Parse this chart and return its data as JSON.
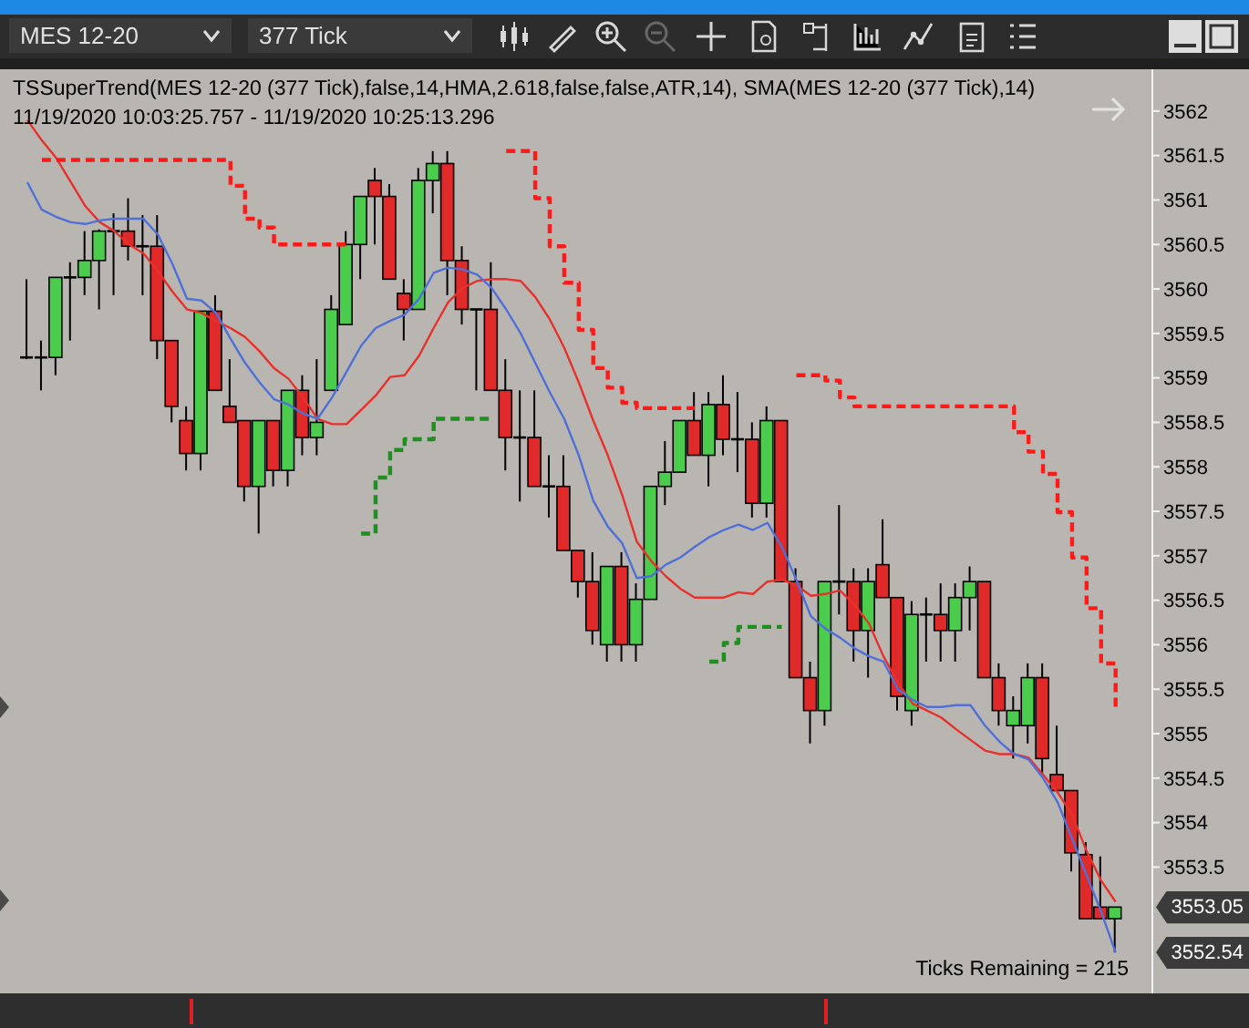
{
  "chart_data": {
    "type": "candlestick",
    "title": "TSSuperTrend(MES 12-20 (377 Tick),false,14,HMA,2.618,false,false,ATR,14), SMA(MES 12-20 (377 Tick),14)",
    "subtitle": "11/19/2020 10:03:25.757 - 11/19/2020 10:25:13.296",
    "categories": [
      null,
      null,
      null,
      null,
      null,
      null,
      null,
      null,
      null,
      null,
      null,
      null,
      null,
      null,
      null,
      null,
      null,
      null,
      null,
      null,
      null,
      null,
      null,
      null,
      null,
      null,
      null,
      null,
      null,
      null,
      null,
      null,
      null,
      null,
      null,
      null,
      null,
      null,
      null,
      null,
      null,
      null,
      null,
      null,
      null,
      null,
      null,
      null,
      null,
      null,
      null,
      null,
      null,
      null,
      null,
      null,
      null,
      null,
      null,
      null,
      null,
      null,
      null,
      null,
      null,
      null,
      null,
      null,
      null,
      null,
      null,
      null,
      null,
      null,
      null,
      null
    ],
    "ohlc": [
      [
        3559.23,
        3560.11,
        3559.21,
        3559.23
      ],
      [
        3559.23,
        3559.42,
        3558.86,
        3559.23
      ],
      [
        3559.23,
        3560.13,
        3559.03,
        3560.13
      ],
      [
        3560.13,
        3560.3,
        3559.42,
        3560.13
      ],
      [
        3560.13,
        3560.65,
        3559.93,
        3560.32
      ],
      [
        3560.32,
        3560.67,
        3559.77,
        3560.65
      ],
      [
        3560.65,
        3560.85,
        3559.93,
        3560.65
      ],
      [
        3560.65,
        3561.02,
        3560.32,
        3560.48
      ],
      [
        3560.48,
        3560.83,
        3559.93,
        3560.48
      ],
      [
        3560.48,
        3560.83,
        3559.21,
        3559.42
      ],
      [
        3559.42,
        3559.42,
        3558.5,
        3558.68
      ],
      [
        3558.52,
        3558.68,
        3557.96,
        3558.15
      ],
      [
        3558.15,
        3559.75,
        3557.96,
        3559.75
      ],
      [
        3559.75,
        3559.93,
        3558.86,
        3558.86
      ],
      [
        3558.68,
        3559.21,
        3558.5,
        3558.5
      ],
      [
        3558.52,
        3558.52,
        3557.61,
        3557.78
      ],
      [
        3557.78,
        3558.52,
        3557.25,
        3558.52
      ],
      [
        3558.52,
        3558.52,
        3557.78,
        3557.96
      ],
      [
        3557.96,
        3558.86,
        3557.78,
        3558.86
      ],
      [
        3558.86,
        3559.03,
        3558.13,
        3558.33
      ],
      [
        3558.33,
        3559.21,
        3558.13,
        3558.5
      ],
      [
        3558.86,
        3559.93,
        3558.86,
        3559.77
      ],
      [
        3559.6,
        3560.65,
        3559.6,
        3560.5
      ],
      [
        3560.5,
        3561.04,
        3560.11,
        3561.04
      ],
      [
        3561.22,
        3561.36,
        3560.5,
        3561.04
      ],
      [
        3561.04,
        3561.18,
        3560.11,
        3560.11
      ],
      [
        3559.95,
        3560.11,
        3559.42,
        3559.77
      ],
      [
        3559.77,
        3561.36,
        3559.77,
        3561.22
      ],
      [
        3561.22,
        3561.55,
        3560.85,
        3561.41
      ],
      [
        3561.41,
        3561.55,
        3559.93,
        3560.32
      ],
      [
        3560.32,
        3560.48,
        3559.6,
        3559.77
      ],
      [
        3559.77,
        3559.77,
        3558.86,
        3559.77
      ],
      [
        3559.77,
        3560.3,
        3558.86,
        3558.86
      ],
      [
        3558.86,
        3559.21,
        3557.96,
        3558.33
      ],
      [
        3558.33,
        3558.86,
        3557.61,
        3558.33
      ],
      [
        3558.33,
        3558.86,
        3557.78,
        3557.78
      ],
      [
        3557.78,
        3558.13,
        3557.43,
        3557.78
      ],
      [
        3557.78,
        3558.13,
        3557.06,
        3557.06
      ],
      [
        3557.06,
        3557.06,
        3556.53,
        3556.71
      ],
      [
        3556.71,
        3557.04,
        3556.0,
        3556.16
      ],
      [
        3556.0,
        3556.88,
        3555.81,
        3556.88
      ],
      [
        3556.88,
        3557.04,
        3555.81,
        3556.0
      ],
      [
        3556.0,
        3556.69,
        3555.81,
        3556.51
      ],
      [
        3556.51,
        3557.78,
        3556.51,
        3557.78
      ],
      [
        3557.78,
        3558.29,
        3557.57,
        3557.94
      ],
      [
        3557.94,
        3558.52,
        3557.94,
        3558.52
      ],
      [
        3558.52,
        3558.84,
        3558.13,
        3558.13
      ],
      [
        3558.13,
        3558.84,
        3557.78,
        3558.7
      ],
      [
        3558.7,
        3559.03,
        3558.13,
        3558.31
      ],
      [
        3558.31,
        3558.84,
        3557.94,
        3558.31
      ],
      [
        3558.31,
        3558.5,
        3557.43,
        3557.59
      ],
      [
        3557.59,
        3558.68,
        3557.43,
        3558.52
      ],
      [
        3558.52,
        3558.52,
        3556.71,
        3556.71
      ],
      [
        3556.71,
        3556.86,
        3555.63,
        3555.63
      ],
      [
        3555.63,
        3555.81,
        3554.89,
        3555.26
      ],
      [
        3555.26,
        3556.71,
        3555.09,
        3556.71
      ],
      [
        3556.71,
        3557.57,
        3556.34,
        3556.71
      ],
      [
        3556.71,
        3556.86,
        3555.81,
        3556.16
      ],
      [
        3556.16,
        3556.86,
        3555.63,
        3556.71
      ],
      [
        3556.9,
        3557.41,
        3556.53,
        3556.53
      ],
      [
        3556.53,
        3556.53,
        3555.26,
        3555.42
      ],
      [
        3555.26,
        3556.49,
        3555.09,
        3556.34
      ],
      [
        3556.34,
        3556.53,
        3555.81,
        3556.34
      ],
      [
        3556.34,
        3556.69,
        3555.81,
        3556.16
      ],
      [
        3556.16,
        3556.69,
        3555.81,
        3556.53
      ],
      [
        3556.53,
        3556.88,
        3556.16,
        3556.71
      ],
      [
        3556.71,
        3556.71,
        3555.63,
        3555.63
      ],
      [
        3555.63,
        3555.79,
        3555.09,
        3555.26
      ],
      [
        3555.09,
        3555.42,
        3554.72,
        3555.26
      ],
      [
        3555.09,
        3555.79,
        3554.89,
        3555.63
      ],
      [
        3555.63,
        3555.79,
        3554.54,
        3554.72
      ],
      [
        3554.54,
        3555.09,
        3554.36,
        3554.36
      ],
      [
        3554.36,
        3554.36,
        3553.45,
        3553.66
      ],
      [
        3553.64,
        3553.78,
        3552.92,
        3552.92
      ],
      [
        3553.05,
        3553.62,
        3552.92,
        3552.92
      ],
      [
        3552.92,
        3553.05,
        3552.54,
        3553.05
      ]
    ],
    "colors": [
      "#000000",
      "#000000",
      "#4ccc4c",
      "#000000",
      "#4ccc4c",
      "#4ccc4c",
      "#000000",
      "#e02a2a",
      "#000000",
      "#e02a2a",
      "#e02a2a",
      "#e02a2a",
      "#4ccc4c",
      "#e02a2a",
      "#e02a2a",
      "#e02a2a",
      "#4ccc4c",
      "#e02a2a",
      "#4ccc4c",
      "#e02a2a",
      "#4ccc4c",
      "#4ccc4c",
      "#4ccc4c",
      "#4ccc4c",
      "#e02a2a",
      "#e02a2a",
      "#e02a2a",
      "#4ccc4c",
      "#4ccc4c",
      "#e02a2a",
      "#e02a2a",
      "#000000",
      "#e02a2a",
      "#e02a2a",
      "#000000",
      "#e02a2a",
      "#000000",
      "#e02a2a",
      "#e02a2a",
      "#e02a2a",
      "#4ccc4c",
      "#e02a2a",
      "#4ccc4c",
      "#4ccc4c",
      "#4ccc4c",
      "#4ccc4c",
      "#e02a2a",
      "#4ccc4c",
      "#e02a2a",
      "#000000",
      "#e02a2a",
      "#4ccc4c",
      "#e02a2a",
      "#e02a2a",
      "#e02a2a",
      "#4ccc4c",
      "#000000",
      "#e02a2a",
      "#4ccc4c",
      "#e02a2a",
      "#e02a2a",
      "#4ccc4c",
      "#000000",
      "#e02a2a",
      "#4ccc4c",
      "#4ccc4c",
      "#e02a2a",
      "#e02a2a",
      "#4ccc4c",
      "#4ccc4c",
      "#e02a2a",
      "#e02a2a",
      "#e02a2a",
      "#e02a2a",
      "#e02a2a",
      "#4ccc4c"
    ],
    "series": [
      {
        "type": "line",
        "color": "#e8302c",
        "values": [
          3561.9,
          3561.67,
          3561.47,
          3561.2,
          3560.93,
          3560.75,
          3560.65,
          3560.5,
          3560.4,
          3560.2,
          3559.97,
          3559.77,
          3559.73,
          3559.64,
          3559.56,
          3559.46,
          3559.3,
          3559.11,
          3558.99,
          3558.78,
          3558.54,
          3558.48,
          3558.48,
          3558.64,
          3558.8,
          3559.01,
          3559.03,
          3559.25,
          3559.56,
          3559.85,
          3560.01,
          3560.09,
          3560.11,
          3560.11,
          3560.09,
          3559.91,
          3559.66,
          3559.34,
          3558.95,
          3558.52,
          3558.13,
          3557.68,
          3557.16,
          3556.94,
          3556.77,
          3556.63,
          3556.53,
          3556.53,
          3556.53,
          3556.59,
          3556.57,
          3556.71,
          3556.73,
          3556.67,
          3556.55,
          3556.57,
          3556.61,
          3556.45,
          3556.24,
          3555.87,
          3555.57,
          3555.34,
          3555.26,
          3555.18,
          3555.05,
          3554.93,
          3554.81,
          3554.77,
          3554.77,
          3554.73,
          3554.54,
          3554.34,
          3554.09,
          3553.68,
          3553.35,
          3553.11
        ]
      },
      {
        "type": "line",
        "color": "#5070d8",
        "values": [
          3561.2,
          3560.89,
          3560.81,
          3560.75,
          3560.73,
          3560.77,
          3560.79,
          3560.79,
          3560.79,
          3560.61,
          3560.28,
          3559.89,
          3559.87,
          3559.73,
          3559.44,
          3559.17,
          3558.95,
          3558.76,
          3558.7,
          3558.6,
          3558.54,
          3558.78,
          3559.07,
          3559.36,
          3559.56,
          3559.64,
          3559.71,
          3559.89,
          3560.18,
          3560.24,
          3560.22,
          3560.16,
          3560.01,
          3559.77,
          3559.5,
          3559.17,
          3558.84,
          3558.54,
          3558.13,
          3557.62,
          3557.33,
          3557.14,
          3556.75,
          3556.77,
          3556.9,
          3556.98,
          3557.1,
          3557.21,
          3557.29,
          3557.35,
          3557.29,
          3557.37,
          3557.1,
          3556.73,
          3556.32,
          3556.18,
          3556.08,
          3555.96,
          3555.87,
          3555.81,
          3555.5,
          3555.38,
          3555.3,
          3555.3,
          3555.32,
          3555.32,
          3555.09,
          3554.91,
          3554.77,
          3554.71,
          3554.5,
          3554.23,
          3553.82,
          3553.41,
          3553.0,
          3552.54
        ]
      },
      {
        "type": "step",
        "line_style": "dashed",
        "color": "#ff1a1a",
        "values": [
          null,
          3561.45,
          3561.45,
          3561.45,
          3561.45,
          3561.45,
          3561.45,
          3561.45,
          3561.45,
          3561.45,
          3561.45,
          3561.45,
          3561.45,
          3561.45,
          3561.16,
          3560.79,
          3560.69,
          3560.5,
          3560.5,
          3560.5,
          3560.5,
          3560.5,
          3560.5,
          null,
          null,
          null,
          null,
          null,
          null,
          null,
          null,
          null,
          null,
          3561.55,
          3561.55,
          3561.02,
          3560.48,
          3560.07,
          3559.54,
          3559.11,
          3558.89,
          3558.72,
          3558.66,
          3558.66,
          3558.66,
          3558.66,
          3558.66,
          null,
          null,
          null,
          null,
          null,
          null,
          3559.03,
          3559.03,
          3558.97,
          3558.78,
          3558.68,
          3558.68,
          3558.68,
          3558.68,
          3558.68,
          3558.68,
          3558.68,
          3558.68,
          3558.68,
          3558.68,
          3558.68,
          3558.39,
          3558.17,
          3557.92,
          3557.49,
          3556.98,
          3556.41,
          3555.79,
          3555.3
        ]
      },
      {
        "type": "step",
        "line_style": "dashed",
        "color": "#1f8f1f",
        "values": [
          null,
          null,
          null,
          null,
          null,
          null,
          null,
          null,
          null,
          null,
          null,
          null,
          null,
          null,
          null,
          null,
          null,
          null,
          null,
          null,
          null,
          null,
          null,
          3557.25,
          3557.88,
          3558.19,
          3558.31,
          3558.31,
          3558.54,
          3558.54,
          3558.54,
          3558.54,
          3558.54,
          null,
          null,
          null,
          null,
          null,
          null,
          null,
          null,
          null,
          null,
          null,
          null,
          null,
          null,
          3555.81,
          3556.02,
          3556.2,
          3556.2,
          3556.2,
          3556.2,
          null,
          null,
          null,
          null,
          null,
          null,
          null,
          null,
          null,
          null,
          null,
          null,
          null,
          null,
          null,
          null,
          null,
          null,
          null,
          null,
          null,
          null,
          null
        ]
      }
    ],
    "ylim": [
      3552.08,
      3562.47
    ],
    "yticks": [
      3553.5,
      3554,
      3554.5,
      3555,
      3555.5,
      3556,
      3556.5,
      3557,
      3557.5,
      3558,
      3558.5,
      3559,
      3559.5,
      3560,
      3560.5,
      3561,
      3561.5,
      3562
    ],
    "tick_labels": "y",
    "annotations": [
      "MES 12-20",
      "377 Tick",
      "Ticks Remaining = 215",
      "3553.05",
      "3552.54"
    ]
  }
}
